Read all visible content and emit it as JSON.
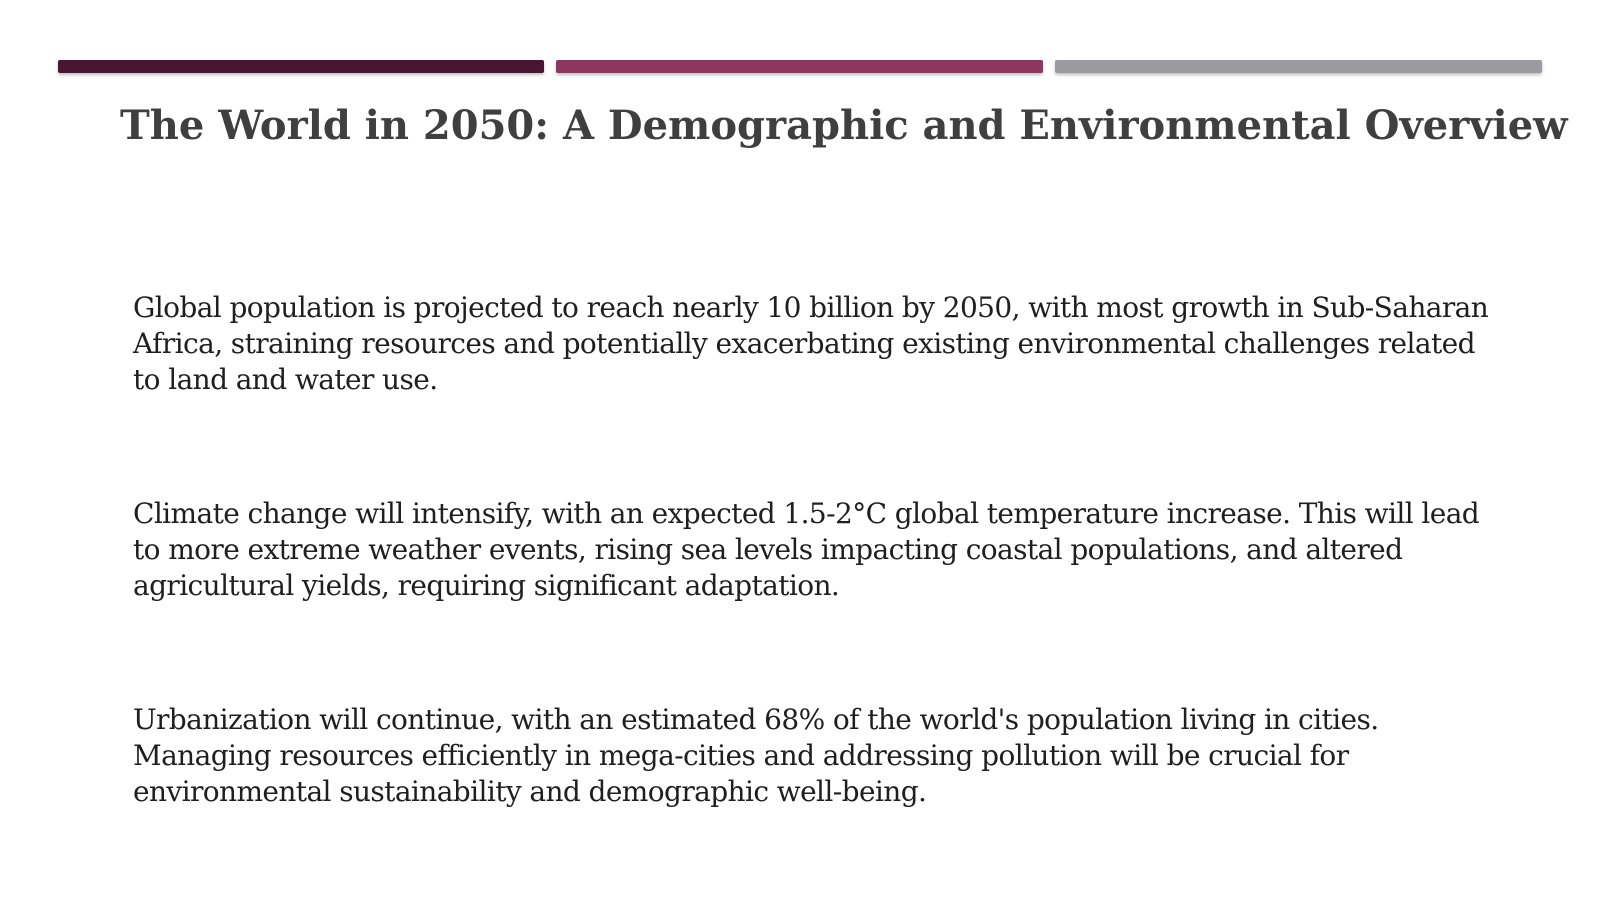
{
  "colors": {
    "bar_1": "#4a1530",
    "bar_2": "#8e3560",
    "bar_3": "#9a9a9f",
    "title": "#3f3f3f",
    "body_text": "#1f1f1f"
  },
  "slide": {
    "title": "The World in 2050: A Demographic and Environmental Overview",
    "bullets": [
      {
        "text": "Global population is projected to reach nearly 10 billion by 2050, with most growth in Sub-Saharan Africa, straining resources and potentially exacerbating existing environmental challenges related to land and water use."
      },
      {
        "text": "Climate change will intensify, with an expected 1.5-2°C global temperature increase. This will lead to more extreme weather events, rising sea levels impacting coastal populations, and altered agricultural yields, requiring significant adaptation."
      },
      {
        "text": "Urbanization will continue, with an estimated 68% of the world's population living in cities. Managing resources efficiently in mega-cities and addressing pollution will be crucial for environmental sustainability and demographic well-being."
      }
    ]
  }
}
